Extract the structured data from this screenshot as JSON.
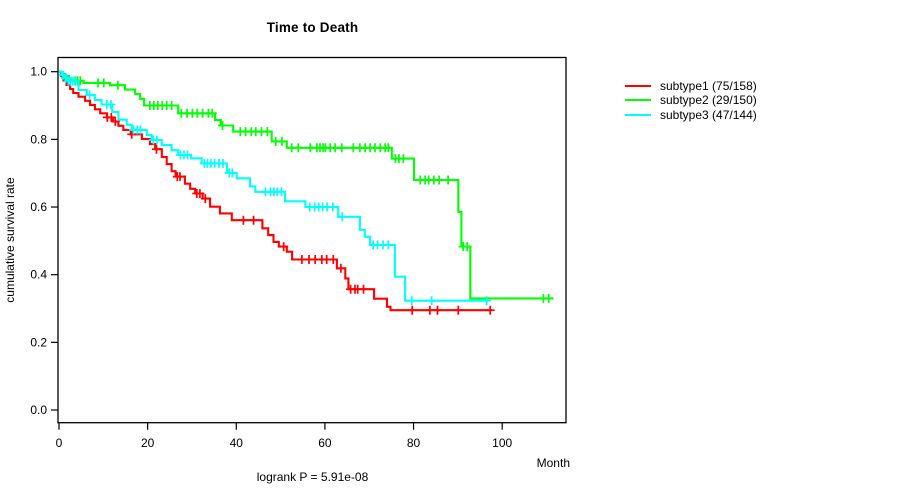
{
  "chart_data": {
    "type": "line",
    "subtype": "kaplan-meier-survival",
    "title": "Time to Death",
    "xlabel": "Month",
    "ylabel": "cumulative survival rate",
    "annotation": "logrank P = 5.91e-08",
    "xlim": [
      0,
      114.4
    ],
    "ylim": [
      0,
      1.0
    ],
    "xticks": [
      "0",
      "20",
      "40",
      "60",
      "80",
      "100"
    ],
    "xtick_values": [
      0,
      20,
      40,
      60,
      80,
      100
    ],
    "yticks": [
      "0.0",
      "0.2",
      "0.4",
      "0.6",
      "0.8",
      "1.0"
    ],
    "ytick_values": [
      0.0,
      0.2,
      0.4,
      0.6,
      0.8,
      1.0
    ],
    "grid": "off",
    "legend_position": "right-outside",
    "box_color": "#000000",
    "series": [
      {
        "name": "subtype1 (75/158)",
        "color": "#ff0000",
        "steps": [
          [
            0,
            1.0
          ],
          [
            0.5,
            0.987
          ],
          [
            1,
            0.974
          ],
          [
            1.7,
            0.961
          ],
          [
            2.5,
            0.949
          ],
          [
            3.2,
            0.937
          ],
          [
            4.4,
            0.926
          ],
          [
            5.9,
            0.914
          ],
          [
            7,
            0.902
          ],
          [
            8.1,
            0.889
          ],
          [
            9.3,
            0.877
          ],
          [
            10.8,
            0.865
          ],
          [
            12.2,
            0.853
          ],
          [
            13.4,
            0.84
          ],
          [
            14.5,
            0.828
          ],
          [
            16.2,
            0.815
          ],
          [
            18.7,
            0.801
          ],
          [
            20.5,
            0.786
          ],
          [
            21.7,
            0.771
          ],
          [
            23.2,
            0.748
          ],
          [
            24.3,
            0.727
          ],
          [
            25.4,
            0.706
          ],
          [
            26.3,
            0.69
          ],
          [
            28.4,
            0.669
          ],
          [
            29.6,
            0.654
          ],
          [
            30.7,
            0.64
          ],
          [
            32.4,
            0.625
          ],
          [
            34.1,
            0.601
          ],
          [
            36.3,
            0.581
          ],
          [
            39,
            0.561
          ],
          [
            45.9,
            0.537
          ],
          [
            47.2,
            0.517
          ],
          [
            48.4,
            0.497
          ],
          [
            49.6,
            0.483
          ],
          [
            51.4,
            0.468
          ],
          [
            52.6,
            0.445
          ],
          [
            62.7,
            0.419
          ],
          [
            64.6,
            0.389
          ],
          [
            65.3,
            0.357
          ],
          [
            71.1,
            0.329
          ],
          [
            74,
            0.305
          ],
          [
            74.8,
            0.295
          ],
          [
            97.7,
            0.295
          ]
        ],
        "censor_months": [
          10.9,
          11.8,
          12.7,
          16.4,
          22,
          26.7,
          27.3,
          31.1,
          31.8,
          33,
          41.6,
          43.9,
          50.7,
          54.8,
          56.4,
          57.8,
          59.3,
          60.4,
          61.9,
          63.6,
          65.8,
          66.8,
          67.4,
          68.7,
          79.7,
          83.7,
          85.4,
          90.1,
          97.3
        ]
      },
      {
        "name": "subtype2 (29/150)",
        "color": "#00ff00",
        "steps": [
          [
            0,
            1.0
          ],
          [
            0.7,
            0.993
          ],
          [
            1.4,
            0.987
          ],
          [
            2.2,
            0.98
          ],
          [
            3,
            0.973
          ],
          [
            5.5,
            0.967
          ],
          [
            11.5,
            0.96
          ],
          [
            14.9,
            0.947
          ],
          [
            17.2,
            0.934
          ],
          [
            18.3,
            0.92
          ],
          [
            19.2,
            0.9
          ],
          [
            26.9,
            0.877
          ],
          [
            35.2,
            0.857
          ],
          [
            36.5,
            0.841
          ],
          [
            39.3,
            0.823
          ],
          [
            48,
            0.794
          ],
          [
            51.4,
            0.775
          ],
          [
            75.1,
            0.743
          ],
          [
            80.1,
            0.68
          ],
          [
            90.1,
            0.586
          ],
          [
            90.8,
            0.483
          ],
          [
            92.8,
            0.33
          ],
          [
            111.6,
            0.33
          ]
        ],
        "censor_months": [
          3.6,
          4.2,
          4.8,
          8.8,
          10.1,
          13.3,
          20.5,
          21.4,
          22.3,
          23.3,
          24.3,
          25.4,
          27.6,
          28.9,
          30.1,
          31.2,
          32.4,
          33.7,
          34.6,
          36.9,
          40.9,
          42.1,
          43.4,
          44.4,
          45.7,
          47,
          48.9,
          50.3,
          52.5,
          54,
          56.7,
          58.2,
          58.9,
          59.6,
          60.1,
          61.2,
          62.3,
          63.8,
          66.4,
          67.9,
          69.1,
          70.2,
          71.3,
          72.5,
          73.6,
          74.3,
          75.9,
          76.7,
          77.7,
          81.5,
          82.6,
          83.4,
          84.6,
          85.8,
          87.8,
          91.2,
          92.1,
          109.3,
          110.5
        ]
      },
      {
        "name": "subtype3 (47/144)",
        "color": "#00ffff",
        "steps": [
          [
            0,
            1.0
          ],
          [
            0.6,
            0.99
          ],
          [
            1.2,
            0.981
          ],
          [
            1.9,
            0.972
          ],
          [
            4.4,
            0.946
          ],
          [
            6.3,
            0.931
          ],
          [
            8.1,
            0.916
          ],
          [
            9.6,
            0.903
          ],
          [
            12,
            0.881
          ],
          [
            13.4,
            0.858
          ],
          [
            15.3,
            0.843
          ],
          [
            16.4,
            0.828
          ],
          [
            19.8,
            0.813
          ],
          [
            20.9,
            0.798
          ],
          [
            23.2,
            0.783
          ],
          [
            25.4,
            0.768
          ],
          [
            26.9,
            0.754
          ],
          [
            29.8,
            0.744
          ],
          [
            32.2,
            0.729
          ],
          [
            37.9,
            0.701
          ],
          [
            40.1,
            0.685
          ],
          [
            43.1,
            0.661
          ],
          [
            44.3,
            0.645
          ],
          [
            51,
            0.617
          ],
          [
            55.6,
            0.6
          ],
          [
            63,
            0.571
          ],
          [
            67.9,
            0.532
          ],
          [
            69,
            0.512
          ],
          [
            70.2,
            0.488
          ],
          [
            75.8,
            0.394
          ],
          [
            78.1,
            0.323
          ],
          [
            96.6,
            0.323
          ]
        ],
        "censor_months": [
          0.9,
          1.5,
          2.1,
          2.6,
          3.1,
          3.7,
          6.9,
          10.8,
          11.7,
          16.8,
          17.7,
          18.4,
          21.3,
          22.1,
          27.4,
          28.2,
          29,
          32.8,
          33.5,
          34.3,
          35.1,
          36.1,
          37,
          38.4,
          39.1,
          46.6,
          47.7,
          48.5,
          49.3,
          50.2,
          56.6,
          57.7,
          58.6,
          59.5,
          60.5,
          61.8,
          63.9,
          70.9,
          71.9,
          73.1,
          74.3,
          79.6,
          84.1,
          96.5
        ]
      }
    ]
  }
}
